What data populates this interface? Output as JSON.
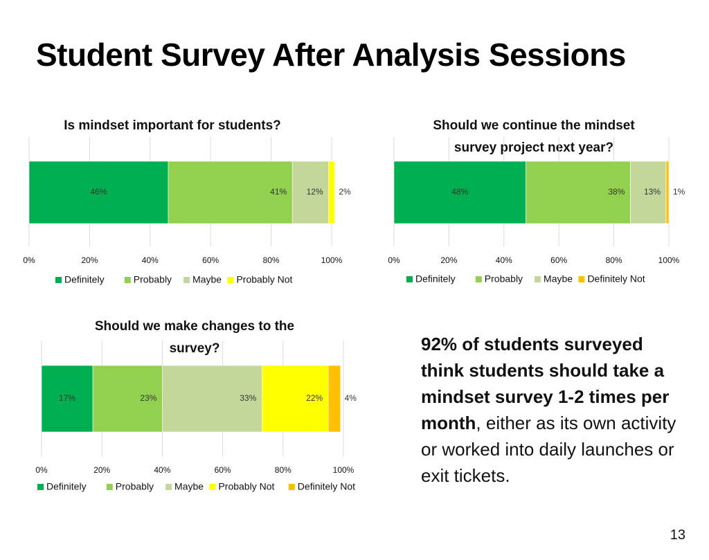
{
  "slide": {
    "title": "Student Survey After Analysis Sessions",
    "page_number": "13",
    "callout_bold": "92% of students surveyed think students should take a mindset survey 1-2 times per month",
    "callout_rest": ", either as its own activity or worked into daily launches or exit tickets."
  },
  "colors": {
    "Definitely": "#00b050",
    "Probably": "#92d050",
    "Maybe": "#c4d79b",
    "Probably Not": "#ffff00",
    "Definitely Not": "#ffc000"
  },
  "chart_data": [
    {
      "type": "bar",
      "orientation": "horizontal-stacked",
      "title": "Is mindset important for students?",
      "title_lines": [
        "Is mindset important for students?"
      ],
      "xlim": [
        0,
        100
      ],
      "ticks": [
        "0%",
        "20%",
        "40%",
        "60%",
        "80%",
        "100%"
      ],
      "grid": true,
      "legend_position": "bottom",
      "series": [
        {
          "name": "Definitely",
          "values": [
            46
          ],
          "label": "46%"
        },
        {
          "name": "Probably",
          "values": [
            41
          ],
          "label": "41%"
        },
        {
          "name": "Maybe",
          "values": [
            12
          ],
          "label": "12%"
        },
        {
          "name": "Probably Not",
          "values": [
            2
          ],
          "label": "2%"
        }
      ]
    },
    {
      "type": "bar",
      "orientation": "horizontal-stacked",
      "title": "Should we continue the mindset survey project next year?",
      "title_lines": [
        "Should we continue the mindset",
        "survey project next year?"
      ],
      "xlim": [
        0,
        100
      ],
      "ticks": [
        "0%",
        "20%",
        "40%",
        "60%",
        "80%",
        "100%"
      ],
      "grid": true,
      "legend_position": "bottom",
      "series": [
        {
          "name": "Definitely",
          "values": [
            48
          ],
          "label": "48%"
        },
        {
          "name": "Probably",
          "values": [
            38
          ],
          "label": "38%"
        },
        {
          "name": "Maybe",
          "values": [
            13
          ],
          "label": "13%"
        },
        {
          "name": "Definitely Not",
          "values": [
            1
          ],
          "label": "1%"
        }
      ]
    },
    {
      "type": "bar",
      "orientation": "horizontal-stacked",
      "title": "Should we make changes to the survey?",
      "title_lines": [
        "Should we make changes to the",
        "survey?"
      ],
      "xlim": [
        0,
        100
      ],
      "ticks": [
        "0%",
        "20%",
        "40%",
        "60%",
        "80%",
        "100%"
      ],
      "grid": true,
      "legend_position": "bottom",
      "series": [
        {
          "name": "Definitely",
          "values": [
            17
          ],
          "label": "17%"
        },
        {
          "name": "Probably",
          "values": [
            23
          ],
          "label": "23%"
        },
        {
          "name": "Maybe",
          "values": [
            33
          ],
          "label": "33%"
        },
        {
          "name": "Probably Not",
          "values": [
            22
          ],
          "label": "22%"
        },
        {
          "name": "Definitely Not",
          "values": [
            4
          ],
          "label": "4%"
        }
      ]
    }
  ]
}
